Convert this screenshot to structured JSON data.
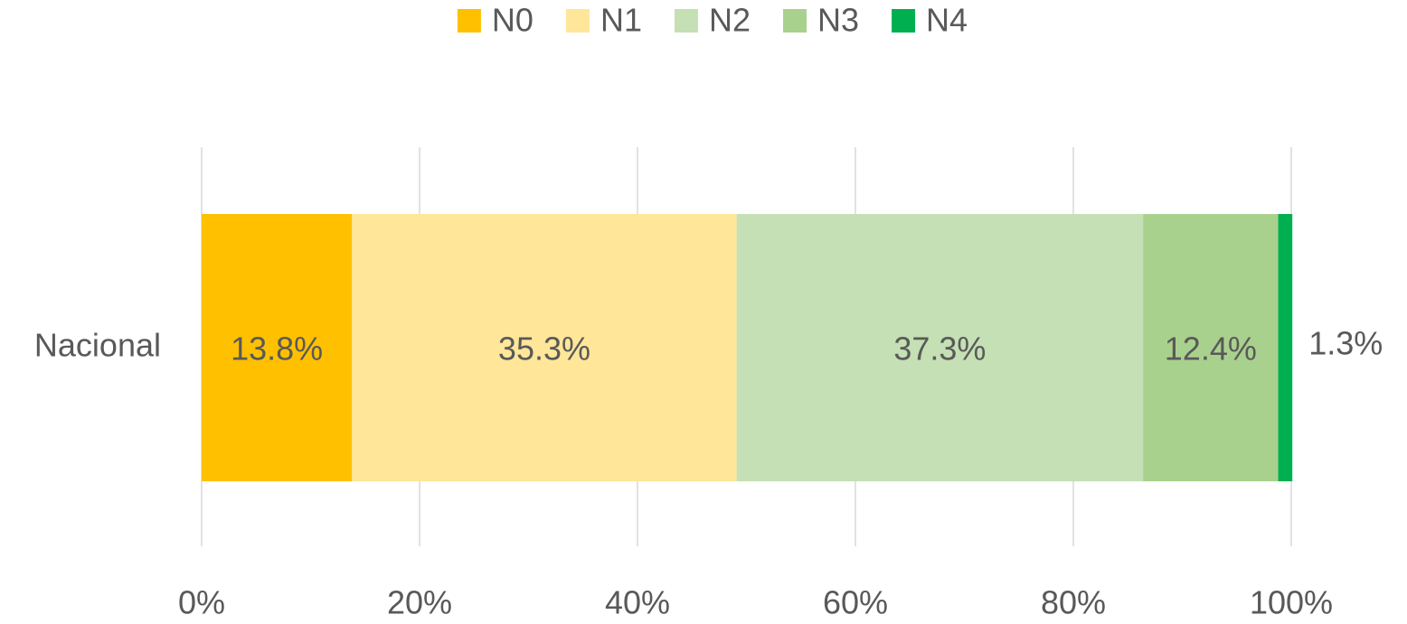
{
  "chart_data": {
    "type": "stacked-bar-horizontal",
    "categories": [
      "Nacional"
    ],
    "series": [
      {
        "name": "N0",
        "color": "#FFC000",
        "values": [
          13.8
        ],
        "value_labels": [
          "13.8%"
        ]
      },
      {
        "name": "N1",
        "color": "#FFE699",
        "values": [
          35.3
        ],
        "value_labels": [
          "35.3%"
        ]
      },
      {
        "name": "N2",
        "color": "#C5E0B4",
        "values": [
          37.3
        ],
        "value_labels": [
          "37.3%"
        ]
      },
      {
        "name": "N3",
        "color": "#A9D18E",
        "values": [
          12.4
        ],
        "value_labels": [
          "12.4%"
        ]
      },
      {
        "name": "N4",
        "color": "#00B050",
        "values": [
          1.3
        ],
        "value_labels": [
          "1.3%"
        ]
      }
    ],
    "xlim": [
      0,
      100
    ],
    "xticks": [
      {
        "value": 0,
        "label": "0%"
      },
      {
        "value": 20,
        "label": "20%"
      },
      {
        "value": 40,
        "label": "40%"
      },
      {
        "value": 60,
        "label": "60%"
      },
      {
        "value": 80,
        "label": "80%"
      },
      {
        "value": 100,
        "label": "100%"
      }
    ],
    "grid": true,
    "legend": "top"
  }
}
